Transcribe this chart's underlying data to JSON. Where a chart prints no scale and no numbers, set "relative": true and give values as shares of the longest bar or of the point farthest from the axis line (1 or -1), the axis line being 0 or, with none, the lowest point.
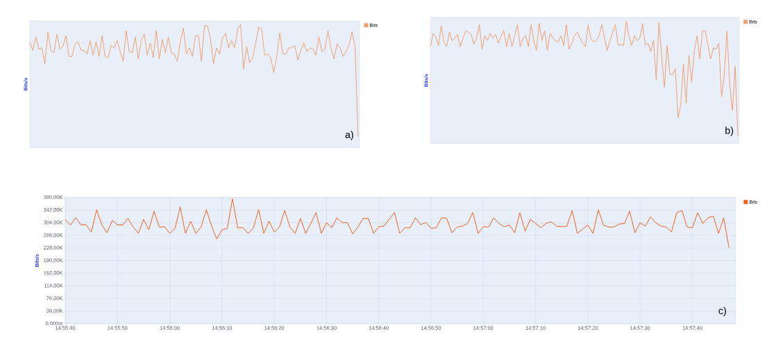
{
  "chart_data": [
    {
      "type": "line",
      "relative": true,
      "ylabel": "Bits/s",
      "legend": "top right",
      "annotations": [
        "a)"
      ],
      "categories": [
        null,
        null,
        null,
        null,
        null,
        null,
        null,
        null,
        null,
        null,
        null,
        null,
        null,
        null,
        null,
        null,
        null,
        null,
        null,
        null,
        null,
        null,
        null,
        null,
        null,
        null,
        null,
        null,
        null,
        null,
        null,
        null,
        null,
        null,
        null,
        null,
        null,
        null,
        null,
        null,
        null,
        null,
        null,
        null,
        null,
        null,
        null,
        null,
        null,
        null,
        null,
        null,
        null,
        null,
        null,
        null,
        null,
        null,
        null,
        null,
        null,
        null,
        null,
        null,
        null,
        null,
        null,
        null,
        null,
        null,
        null,
        null,
        null,
        null,
        null,
        null,
        null,
        null,
        null,
        null,
        null,
        null,
        null,
        null,
        null,
        null,
        null,
        null,
        null,
        null,
        null,
        null,
        null,
        null,
        null,
        null,
        null,
        null,
        null,
        null,
        null,
        null,
        null,
        null,
        null,
        null,
        null,
        null,
        null,
        null
      ],
      "series": [
        {
          "name": "Bits",
          "color": "#f0a070",
          "values": [
            0.86,
            0.79,
            0.9,
            0.8,
            0.81,
            0.68,
            0.94,
            0.79,
            0.77,
            0.92,
            0.8,
            0.82,
            0.91,
            0.74,
            0.74,
            0.84,
            0.86,
            0.79,
            0.79,
            0.76,
            0.87,
            0.75,
            0.86,
            0.74,
            0.91,
            0.74,
            0.73,
            0.83,
            0.81,
            0.87,
            0.78,
            0.7,
            0.95,
            0.78,
            0.77,
            0.9,
            0.72,
            0.87,
            0.92,
            0.75,
            0.85,
            0.73,
            0.95,
            0.72,
            0.88,
            0.77,
            0.9,
            0.77,
            0.76,
            0.7,
            0.86,
            0.97,
            0.76,
            0.81,
            0.74,
            0.91,
            0.91,
            0.7,
            0.99,
            0.99,
            0.88,
            0.68,
            0.81,
            0.76,
            0.89,
            0.93,
            0.81,
            0.87,
            0.81,
            0.96,
            1.0,
            0.64,
            0.82,
            0.69,
            0.73,
            0.85,
            0.98,
            0.96,
            0.75,
            0.76,
            0.73,
            0.61,
            0.74,
            0.93,
            0.76,
            0.76,
            0.81,
            0.81,
            0.83,
            0.71,
            0.79,
            0.85,
            0.78,
            0.81,
            0.8,
            0.75,
            0.9,
            0.78,
            0.8,
            0.95,
            0.81,
            0.72,
            0.84,
            0.81,
            0.74,
            0.78,
            0.83,
            0.94,
            0.82,
            0.09
          ]
        }
      ]
    },
    {
      "type": "line",
      "relative": true,
      "ylabel": "Bits/s",
      "legend": "top right",
      "annotations": [
        "b)"
      ],
      "categories": [
        null,
        null,
        null,
        null,
        null,
        null,
        null,
        null,
        null,
        null,
        null,
        null,
        null,
        null,
        null,
        null,
        null,
        null,
        null,
        null,
        null,
        null,
        null,
        null,
        null,
        null,
        null,
        null,
        null,
        null,
        null,
        null,
        null,
        null,
        null,
        null,
        null,
        null,
        null,
        null,
        null,
        null,
        null,
        null,
        null,
        null,
        null,
        null,
        null,
        null,
        null,
        null,
        null,
        null,
        null,
        null,
        null,
        null,
        null,
        null,
        null,
        null,
        null,
        null,
        null,
        null,
        null,
        null,
        null,
        null,
        null,
        null,
        null,
        null,
        null,
        null,
        null,
        null,
        null,
        null,
        null,
        null,
        null,
        null,
        null,
        null,
        null,
        null,
        null,
        null,
        null,
        null,
        null,
        null,
        null,
        null,
        null,
        null,
        null,
        null,
        null,
        null,
        null,
        null,
        null,
        null,
        null,
        null,
        null,
        null,
        null,
        null,
        null,
        null
      ],
      "series": [
        {
          "name": "Bits",
          "color": "#f0a070",
          "values": [
            0.79,
            0.9,
            0.87,
            0.8,
            0.96,
            0.83,
            0.79,
            0.91,
            0.84,
            0.86,
            0.89,
            0.79,
            0.86,
            0.92,
            0.91,
            0.89,
            0.81,
            0.86,
            0.97,
            0.77,
            0.88,
            0.84,
            0.9,
            0.86,
            0.89,
            0.82,
            0.88,
            0.92,
            0.79,
            0.9,
            0.79,
            0.88,
            0.97,
            0.79,
            0.86,
            0.88,
            0.79,
            0.97,
            0.84,
            0.76,
            0.98,
            0.84,
            0.92,
            0.76,
            0.9,
            0.86,
            0.84,
            0.83,
            0.88,
            0.8,
            0.97,
            0.77,
            0.82,
            0.88,
            0.91,
            0.86,
            0.82,
            0.79,
            0.97,
            0.85,
            0.83,
            0.84,
            0.88,
            0.97,
            0.86,
            0.76,
            0.84,
            0.91,
            0.97,
            0.8,
            0.81,
            0.8,
            1.0,
            0.87,
            0.8,
            0.88,
            0.84,
            0.86,
            0.98,
            0.8,
            0.82,
            0.75,
            0.84,
            0.52,
            0.99,
            0.71,
            0.46,
            0.8,
            0.57,
            0.56,
            0.61,
            0.21,
            0.31,
            0.65,
            0.33,
            0.72,
            0.5,
            0.75,
            0.88,
            0.69,
            0.92,
            0.92,
            0.8,
            0.69,
            0.78,
            0.77,
            0.82,
            0.38,
            0.56,
            0.92,
            0.48,
            0.27,
            0.63,
            0.06
          ]
        }
      ]
    },
    {
      "type": "line",
      "ylabel": "Bits/s",
      "legend": "top right",
      "grid": true,
      "annotations": [
        "c)"
      ],
      "xlim": [
        14.927778,
        14.963417
      ],
      "ylim": [
        0,
        380000
      ],
      "xticks": [
        {
          "value": 14.927778,
          "label": "14:55:40"
        },
        {
          "value": 14.930556,
          "label": "14:55:50"
        },
        {
          "value": 14.933333,
          "label": "14:56:00"
        },
        {
          "value": 14.936111,
          "label": "14:56:10"
        },
        {
          "value": 14.938889,
          "label": "14:56:20"
        },
        {
          "value": 14.941667,
          "label": "14:56:30"
        },
        {
          "value": 14.944444,
          "label": "14:56:40"
        },
        {
          "value": 14.947222,
          "label": "14:56:50"
        },
        {
          "value": 14.95,
          "label": "14:57:00"
        },
        {
          "value": 14.952778,
          "label": "14:57:10"
        },
        {
          "value": 14.955556,
          "label": "14:57:20"
        },
        {
          "value": 14.958333,
          "label": "14:57:30"
        },
        {
          "value": 14.961111,
          "label": "14:57:40"
        }
      ],
      "yticks": [
        {
          "value": 0,
          "label": "0,000m"
        },
        {
          "value": 38000,
          "label": "38,00K"
        },
        {
          "value": 76000,
          "label": "76,00K"
        },
        {
          "value": 114000,
          "label": "114,00K"
        },
        {
          "value": 152000,
          "label": "152,00K"
        },
        {
          "value": 190000,
          "label": "190,00K"
        },
        {
          "value": 228000,
          "label": "228,00K"
        },
        {
          "value": 266000,
          "label": "266,00K"
        },
        {
          "value": 304000,
          "label": "304,00K"
        },
        {
          "value": 342000,
          "label": "342,00K"
        },
        {
          "value": 380000,
          "label": "380,00K"
        }
      ],
      "x": [
        14.927778,
        14.928056,
        14.928333,
        14.928611,
        14.928889,
        14.929167,
        14.929444,
        14.929722,
        14.93,
        14.930278,
        14.930556,
        14.930833,
        14.931111,
        14.931389,
        14.931667,
        14.931944,
        14.932222,
        14.9325,
        14.932778,
        14.933056,
        14.933333,
        14.933611,
        14.933889,
        14.934167,
        14.934444,
        14.934722,
        14.935,
        14.935278,
        14.935556,
        14.935833,
        14.936111,
        14.936389,
        14.936667,
        14.936944,
        14.937222,
        14.9375,
        14.937778,
        14.938056,
        14.938333,
        14.938611,
        14.938889,
        14.939167,
        14.939444,
        14.939722,
        14.94,
        14.940278,
        14.940556,
        14.940833,
        14.941111,
        14.941389,
        14.941667,
        14.941944,
        14.942222,
        14.9425,
        14.942778,
        14.943056,
        14.943333,
        14.943611,
        14.943889,
        14.944167,
        14.944444,
        14.944722,
        14.945278,
        14.945556,
        14.945833,
        14.946111,
        14.946389,
        14.946667,
        14.946944,
        14.947222,
        14.9475,
        14.947778,
        14.948056,
        14.948333,
        14.948611,
        14.948889,
        14.949167,
        14.949444,
        14.949722,
        14.95,
        14.950278,
        14.950556,
        14.950833,
        14.951111,
        14.951389,
        14.951667,
        14.951944,
        14.952222,
        14.9525,
        14.952778,
        14.953056,
        14.953333,
        14.953611,
        14.953889,
        14.954167,
        14.954444,
        14.954722,
        14.955,
        14.955278,
        14.955556,
        14.955833,
        14.956111,
        14.956389,
        14.956667,
        14.956944,
        14.957222,
        14.9575,
        14.957778,
        14.958056,
        14.958333,
        14.958611,
        14.958889,
        14.959167,
        14.959444,
        14.959722,
        14.96,
        14.960278,
        14.960556,
        14.960833,
        14.961111,
        14.961389,
        14.961667,
        14.961944,
        14.962222,
        14.9625,
        14.962778,
        14.963056
      ],
      "series": [
        {
          "name": "Bits",
          "color": "#f06020",
          "values": [
            313000,
            297000,
            319000,
            298000,
            298000,
            276000,
            343000,
            298000,
            274000,
            311000,
            298000,
            297000,
            317000,
            291000,
            272000,
            314000,
            283000,
            339000,
            291000,
            292000,
            272000,
            287000,
            352000,
            272000,
            309000,
            272000,
            292000,
            343000,
            294000,
            255000,
            283000,
            287000,
            376000,
            289000,
            289000,
            272000,
            289000,
            344000,
            272000,
            309000,
            276000,
            291000,
            341000,
            291000,
            272000,
            317000,
            272000,
            302000,
            335000,
            272000,
            304000,
            289000,
            319000,
            304000,
            304000,
            270000,
            291000,
            317000,
            317000,
            272000,
            292000,
            294000,
            335000,
            272000,
            289000,
            289000,
            319000,
            298000,
            305000,
            287000,
            289000,
            319000,
            317000,
            274000,
            291000,
            294000,
            302000,
            335000,
            272000,
            292000,
            291000,
            319000,
            302000,
            292000,
            297000,
            274000,
            334000,
            279000,
            314000,
            302000,
            289000,
            302000,
            307000,
            294000,
            292000,
            294000,
            341000,
            272000,
            285000,
            297000,
            272000,
            343000,
            297000,
            291000,
            291000,
            300000,
            302000,
            339000,
            274000,
            304000,
            294000,
            322000,
            304000,
            294000,
            291000,
            276000,
            334000,
            341000,
            291000,
            289000,
            334000,
            302000,
            319000,
            324000,
            272000,
            319000,
            229000
          ]
        }
      ]
    }
  ]
}
